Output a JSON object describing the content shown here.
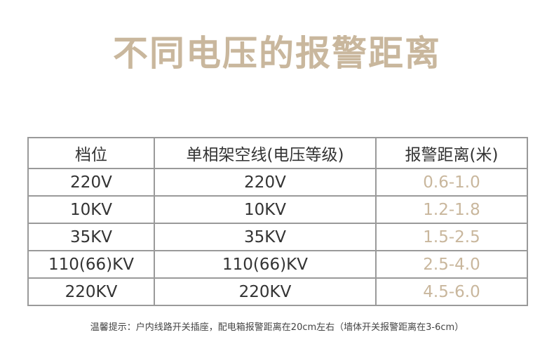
{
  "title": "不同电压的报警距离",
  "table": {
    "headers": [
      "档位",
      "单相架空线(电压等级)",
      "报警距离(米)"
    ],
    "rows": [
      {
        "gear": "220V",
        "voltage": "220V",
        "distance": "0.6-1.0"
      },
      {
        "gear": "10KV",
        "voltage": "10KV",
        "distance": "1.2-1.8"
      },
      {
        "gear": "35KV",
        "voltage": "35KV",
        "distance": "1.5-2.5"
      },
      {
        "gear": "110(66)KV",
        "voltage": "110(66)KV",
        "distance": "2.5-4.0"
      },
      {
        "gear": "220KV",
        "voltage": "220KV",
        "distance": "4.5-6.0"
      }
    ]
  },
  "note": "温馨提示：户内线路开关插座，配电箱报警距离在20cm左右（墙体开关报警距离在3-6cm）",
  "colors": {
    "accent": "#c9b79d",
    "text": "#333333",
    "border": "#9a9a9a"
  }
}
